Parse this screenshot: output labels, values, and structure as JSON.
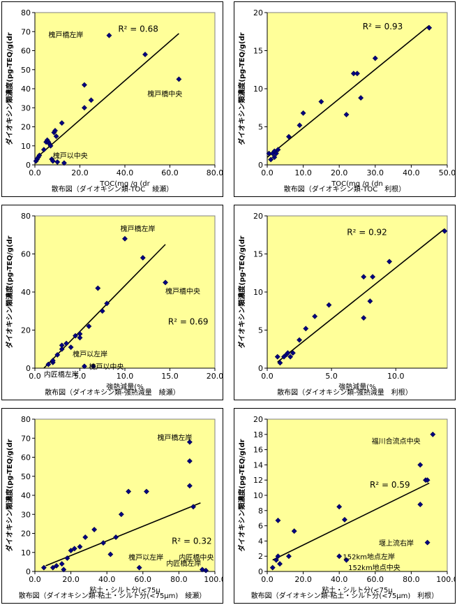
{
  "chart_data": [
    {
      "type": "scatter",
      "caption": "散布図（ダイオキシン類-TOC　綾瀬）",
      "xlabel": "TOC(mg /g (dr",
      "ylabel": "ダイオキシン類濃度(pg-TEQ/g(dr",
      "xlim": [
        0,
        80
      ],
      "ylim": [
        0,
        80
      ],
      "xticks": [
        "0.0",
        "20.0",
        "40.0",
        "60.0",
        "80.0"
      ],
      "yticks": [
        "0",
        "10",
        "20",
        "30",
        "40",
        "50",
        "60",
        "70",
        "80"
      ],
      "r2_label": "R² = 0.68",
      "r2_pos": [
        37,
        70
      ],
      "trendline": [
        [
          0,
          3
        ],
        [
          64,
          69
        ]
      ],
      "points": [
        [
          0.5,
          2
        ],
        [
          1,
          3
        ],
        [
          1.5,
          4
        ],
        [
          2,
          5
        ],
        [
          4,
          8
        ],
        [
          5,
          12
        ],
        [
          5.5,
          13
        ],
        [
          6,
          12
        ],
        [
          6.5,
          11
        ],
        [
          7,
          10
        ],
        [
          7.5,
          3
        ],
        [
          8,
          2
        ],
        [
          8.5,
          17
        ],
        [
          9,
          18
        ],
        [
          9.5,
          15
        ],
        [
          10,
          1.5
        ],
        [
          12,
          22
        ],
        [
          13,
          1
        ],
        [
          22,
          30
        ],
        [
          22,
          42
        ],
        [
          25,
          34
        ],
        [
          33,
          68
        ],
        [
          49,
          58
        ],
        [
          64,
          45
        ]
      ],
      "annotations": [
        {
          "text": "槐戸橋左岸",
          "x": 6,
          "y": 67
        },
        {
          "text": "槐戸橋中央",
          "x": 50,
          "y": 36
        },
        {
          "text": "槐戸以中央",
          "x": 8,
          "y": 3.5
        }
      ]
    },
    {
      "type": "scatter",
      "caption": "散布図（ダイオキシン類-TOC　利根）",
      "xlabel": "TOC(mg /g (dn",
      "ylabel": "ダイオキシン類濃度(pg-TEQ/g(dr",
      "xlim": [
        0,
        50
      ],
      "ylim": [
        0,
        20
      ],
      "xticks": [
        "0.0",
        "10.0",
        "20.0",
        "30.0",
        "40.0",
        "50.0"
      ],
      "yticks": [
        "0",
        "5",
        "10",
        "15",
        "20"
      ],
      "r2_label": "R² = 0.93",
      "r2_pos": [
        26.5,
        17.8
      ],
      "trendline": [
        [
          0,
          1
        ],
        [
          45,
          18.3
        ]
      ],
      "points": [
        [
          0.5,
          1.5
        ],
        [
          1,
          0.7
        ],
        [
          1.5,
          1.5
        ],
        [
          2,
          1
        ],
        [
          2,
          1.8
        ],
        [
          2.5,
          1.5
        ],
        [
          3,
          2
        ],
        [
          6,
          3.7
        ],
        [
          9,
          5.2
        ],
        [
          10,
          6.8
        ],
        [
          15,
          8.3
        ],
        [
          22,
          6.6
        ],
        [
          24,
          12
        ],
        [
          25,
          12
        ],
        [
          26,
          8.8
        ],
        [
          30,
          14
        ],
        [
          45,
          18
        ]
      ],
      "annotations": []
    },
    {
      "type": "scatter",
      "caption": "散布図（ダイオキシン類-強熱減量　綾瀬）",
      "xlabel": "強熱減量(%",
      "ylabel": "ダイオキシン類濃度(pg-TEQ/g(dr",
      "xlim": [
        0,
        20
      ],
      "ylim": [
        0,
        80
      ],
      "xticks": [
        "0.0",
        "5.0",
        "10.0",
        "15.0",
        "20.0"
      ],
      "yticks": [
        "0",
        "20",
        "40",
        "60",
        "80"
      ],
      "r2_label": "R² = 0.69",
      "r2_pos": [
        14.8,
        23
      ],
      "trendline": [
        [
          1,
          0
        ],
        [
          14.5,
          65
        ]
      ],
      "points": [
        [
          1.5,
          2
        ],
        [
          2,
          3
        ],
        [
          2,
          4
        ],
        [
          2.5,
          7
        ],
        [
          3,
          10
        ],
        [
          3,
          12
        ],
        [
          3.5,
          13
        ],
        [
          4,
          11
        ],
        [
          4.5,
          17
        ],
        [
          5,
          18
        ],
        [
          5,
          16
        ],
        [
          5.5,
          1
        ],
        [
          6,
          22
        ],
        [
          6.5,
          1
        ],
        [
          7,
          42
        ],
        [
          7.5,
          30
        ],
        [
          8,
          34
        ],
        [
          10,
          68
        ],
        [
          12,
          58
        ],
        [
          14.5,
          45
        ]
      ],
      "annotations": [
        {
          "text": "槐戸橋左岸",
          "x": 9.5,
          "y": 72
        },
        {
          "text": "槐戸橋中央",
          "x": 14.5,
          "y": 39
        },
        {
          "text": "槐戸以左岸",
          "x": 4.2,
          "y": 6
        },
        {
          "text": "内匠橋左岸",
          "x": 1,
          "y": -4.5
        },
        {
          "text": "槐戸以中央",
          "x": 6,
          "y": -0.5
        }
      ]
    },
    {
      "type": "scatter",
      "caption": "散布図（ダイオキシン類-強熱減量　利根）",
      "xlabel": "強熱減量(%",
      "ylabel": "ダイオキシン類濃度(pg-TEQ/g(dr",
      "xlim": [
        0,
        14
      ],
      "ylim": [
        0,
        20
      ],
      "xticks": [
        "0.0",
        "5.0",
        "10.0"
      ],
      "yticks": [
        "0",
        "5",
        "10",
        "15",
        "20"
      ],
      "r2_label": "R² = 0.92",
      "r2_pos": [
        6.2,
        17.5
      ],
      "trendline": [
        [
          0.8,
          0.8
        ],
        [
          13.8,
          18.3
        ]
      ],
      "points": [
        [
          0.8,
          1.5
        ],
        [
          1,
          0.7
        ],
        [
          1.3,
          1.5
        ],
        [
          1.5,
          1.8
        ],
        [
          1.6,
          2
        ],
        [
          1.8,
          1.5
        ],
        [
          2,
          2
        ],
        [
          2.5,
          3.7
        ],
        [
          3,
          5.2
        ],
        [
          3.7,
          6.8
        ],
        [
          4.8,
          8.3
        ],
        [
          7.5,
          6.6
        ],
        [
          7.5,
          12
        ],
        [
          8,
          8.8
        ],
        [
          8.2,
          12
        ],
        [
          9.5,
          14
        ],
        [
          13.8,
          18
        ]
      ],
      "annotations": []
    },
    {
      "type": "scatter",
      "caption": "散布図（ダイオキシン類-粘土・シルト分(<75μm)　綾瀬）",
      "xlabel": "粘土・シルト分(<75μ",
      "ylabel": "ダイオキシン類濃度(pg-TEQ/g(dr",
      "xlim": [
        0,
        100
      ],
      "ylim": [
        0,
        80
      ],
      "xticks": [
        "0.0",
        "20.0",
        "40.0",
        "60.0",
        "80.0",
        "100.0"
      ],
      "yticks": [
        "0",
        "10",
        "20",
        "30",
        "40",
        "50",
        "60",
        "70",
        "80"
      ],
      "r2_label": "R² = 0.32",
      "r2_pos": [
        76,
        14.5
      ],
      "trendline": [
        [
          6,
          3
        ],
        [
          92,
          36
        ]
      ],
      "points": [
        [
          5,
          2
        ],
        [
          10,
          2
        ],
        [
          12,
          3
        ],
        [
          15,
          4
        ],
        [
          16,
          1
        ],
        [
          18,
          7
        ],
        [
          20,
          11
        ],
        [
          22,
          12
        ],
        [
          25,
          13
        ],
        [
          28,
          18
        ],
        [
          33,
          22
        ],
        [
          38,
          15
        ],
        [
          42,
          9
        ],
        [
          45,
          18
        ],
        [
          48,
          30
        ],
        [
          52,
          42
        ],
        [
          58,
          2
        ],
        [
          62,
          42
        ],
        [
          86,
          68
        ],
        [
          86,
          58
        ],
        [
          86,
          45
        ],
        [
          88,
          34
        ],
        [
          93,
          1
        ],
        [
          95,
          0.5
        ]
      ],
      "annotations": [
        {
          "text": "槐戸橋左岸",
          "x": 68,
          "y": 69
        },
        {
          "text": "槐戸以左岸",
          "x": 52,
          "y": 6
        },
        {
          "text": "内匠橋中央",
          "x": 80,
          "y": 6
        },
        {
          "text": "内匠橋左岸",
          "x": 73,
          "y": 3
        }
      ]
    },
    {
      "type": "scatter",
      "caption": "散布図（ダイオキシン類-粘土・シルト分(<75μm)　利根）",
      "xlabel": "粘土・シルト分(<75μ",
      "ylabel": "ダイオキシン類濃度(pg-TEQ/g(dr",
      "xlim": [
        0,
        100
      ],
      "ylim": [
        0,
        20
      ],
      "xticks": [
        "0.0",
        "20.0",
        "40.0",
        "60.0",
        "80.0",
        "100.0"
      ],
      "yticks": [
        "0",
        "2",
        "4",
        "6",
        "8",
        "10",
        "12",
        "14",
        "16",
        "18",
        "20"
      ],
      "r2_label": "R² = 0.59",
      "r2_pos": [
        57,
        11
      ],
      "trendline": [
        [
          3,
          1.5
        ],
        [
          90,
          11.6
        ]
      ],
      "points": [
        [
          3,
          0.5
        ],
        [
          5,
          1.5
        ],
        [
          6,
          2
        ],
        [
          6,
          6.7
        ],
        [
          7,
          1
        ],
        [
          12,
          2
        ],
        [
          15,
          5.3
        ],
        [
          40,
          8.5
        ],
        [
          40,
          2
        ],
        [
          43,
          6.8
        ],
        [
          44,
          1.5
        ],
        [
          85,
          14
        ],
        [
          85,
          8.8
        ],
        [
          88,
          12
        ],
        [
          89,
          12
        ],
        [
          89,
          3.8
        ],
        [
          92,
          18
        ]
      ],
      "annotations": [
        {
          "text": "福川合流点中央",
          "x": 58,
          "y": 16.8
        },
        {
          "text": "堰上流右岸",
          "x": 62,
          "y": 3.4
        },
        {
          "text": "152km地点左岸",
          "x": 42,
          "y": 1.6
        },
        {
          "text": "152km地点中央",
          "x": 45,
          "y": 0.2
        }
      ]
    }
  ]
}
